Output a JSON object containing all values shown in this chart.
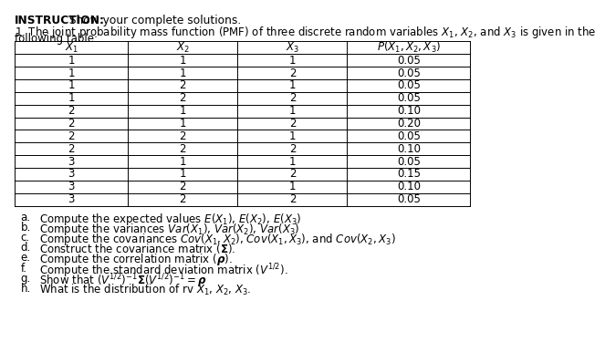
{
  "bg_color": "#ffffff",
  "text_color": "#000000",
  "table_line_color": "#000000",
  "fontsize_body": 8.5,
  "fontsize_instruction": 8.8,
  "fontsize_table": 8.5,
  "col_headers_italic": [
    "$\\it{X}_1$",
    "$\\it{X}_2$",
    "$\\it{X}_3$",
    "$\\it{P}(\\it{X}_1, \\it{X}_2, \\it{X}_3)$"
  ],
  "table_data": [
    [
      1,
      1,
      1,
      "0.05"
    ],
    [
      1,
      1,
      2,
      "0.05"
    ],
    [
      1,
      2,
      1,
      "0.05"
    ],
    [
      1,
      2,
      2,
      "0.05"
    ],
    [
      2,
      1,
      1,
      "0.10"
    ],
    [
      2,
      1,
      2,
      "0.20"
    ],
    [
      2,
      2,
      1,
      "0.05"
    ],
    [
      2,
      2,
      2,
      "0.10"
    ],
    [
      3,
      1,
      1,
      "0.05"
    ],
    [
      3,
      1,
      2,
      "0.15"
    ],
    [
      3,
      2,
      1,
      "0.10"
    ],
    [
      3,
      2,
      2,
      "0.05"
    ]
  ],
  "instruction_bold": "INSTRUCTION:",
  "instruction_rest": " Show your complete solutions.",
  "problem_line1": "1. The joint probability mass function (PMF) of three discrete random variables $X_1$, $X_2$, and $X_3$ is given in the",
  "problem_line2": "following table:",
  "parts_letter": [
    "a.",
    "b.",
    "c.",
    "d.",
    "e.",
    "f.",
    "g.",
    "h."
  ],
  "parts_text": [
    "Compute the expected values $E(X_1)$, $E(X_2)$, $E(X_3)$",
    "Compute the variances $Var(X_1)$, $Var(X_2)$, $Var(X_3)$",
    "Compute the covariances $Cov(X_1, X_2)$, $Cov(X_1, X_3)$, and $Cov(X_2, X_3)$",
    "Construct the covariance matrix ($\\mathbf{\\Sigma}$).",
    "Compute the correlation matrix ($\\boldsymbol{\\rho}$).",
    "Compute the standard deviation matrix ($V^{1/2}$).",
    "Show that $(V^{1/2})^{-1}\\mathbf{\\Sigma}(V^{1/2})^{-1} = \\boldsymbol{\\rho}$",
    "What is the distribution of rv $X_1$, $X_2$, $X_3$."
  ]
}
